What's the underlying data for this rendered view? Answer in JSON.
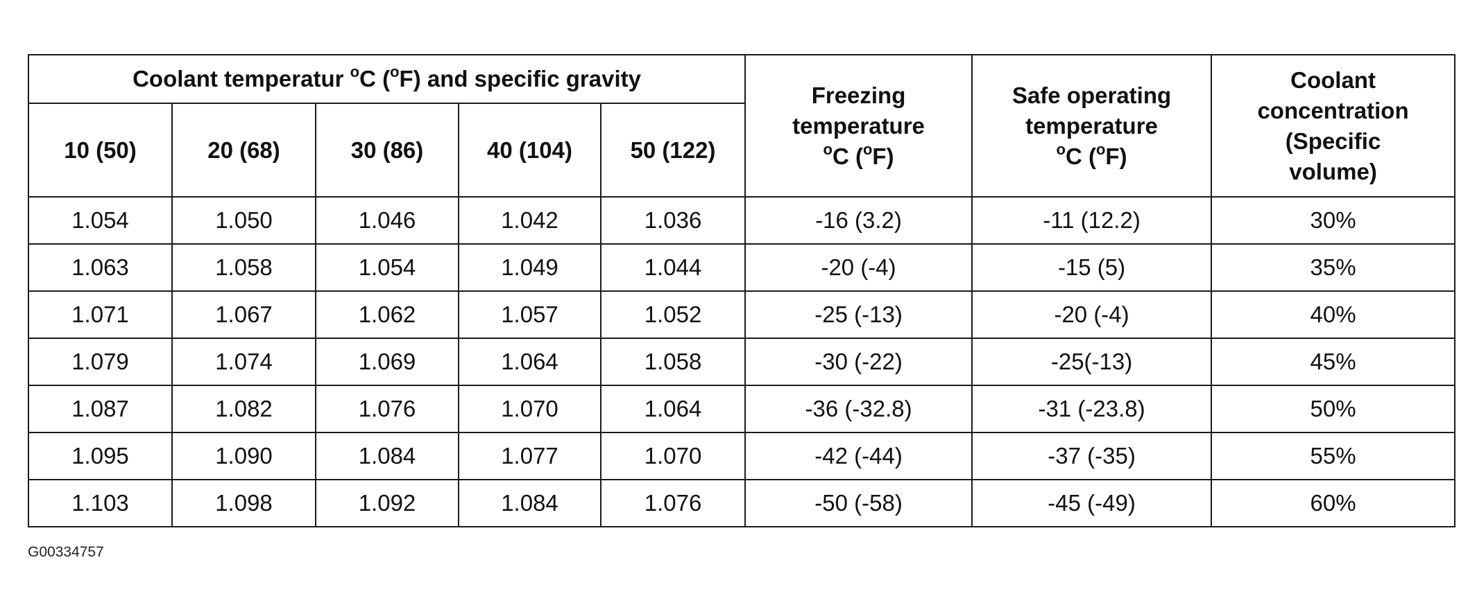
{
  "table": {
    "group_header": {
      "prefix": "Coolant temperatur ",
      "deg1": "o",
      "mid1": "C (",
      "deg2": "o",
      "suffix": "F) and specific gravity"
    },
    "temp_columns": [
      "10 (50)",
      "20 (68)",
      "30 (86)",
      "40 (104)",
      "50 (122)"
    ],
    "freezing_header": {
      "line1": "Freezing",
      "line2": "temperature",
      "deg1": "o",
      "mid": "C (",
      "deg2": "o",
      "end": "F)"
    },
    "safe_header": {
      "line1": "Safe operating",
      "line2": "temperature",
      "deg1": "o",
      "mid": "C (",
      "deg2": "o",
      "end": "F)"
    },
    "concentration_header": {
      "line1": "Coolant",
      "line2": "concentration",
      "line3": "(Specific",
      "line4": "volume)"
    },
    "rows": [
      {
        "sg": [
          "1.054",
          "1.050",
          "1.046",
          "1.042",
          "1.036"
        ],
        "freezing": "-16 (3.2)",
        "safe": "-11 (12.2)",
        "concentration": "30%"
      },
      {
        "sg": [
          "1.063",
          "1.058",
          "1.054",
          "1.049",
          "1.044"
        ],
        "freezing": "-20 (-4)",
        "safe": "-15 (5)",
        "concentration": "35%"
      },
      {
        "sg": [
          "1.071",
          "1.067",
          "1.062",
          "1.057",
          "1.052"
        ],
        "freezing": "-25 (-13)",
        "safe": "-20 (-4)",
        "concentration": "40%"
      },
      {
        "sg": [
          "1.079",
          "1.074",
          "1.069",
          "1.064",
          "1.058"
        ],
        "freezing": "-30 (-22)",
        "safe": "-25(-13)",
        "concentration": "45%"
      },
      {
        "sg": [
          "1.087",
          "1.082",
          "1.076",
          "1.070",
          "1.064"
        ],
        "freezing": "-36 (-32.8)",
        "safe": "-31 (-23.8)",
        "concentration": "50%"
      },
      {
        "sg": [
          "1.095",
          "1.090",
          "1.084",
          "1.077",
          "1.070"
        ],
        "freezing": "-42 (-44)",
        "safe": "-37 (-35)",
        "concentration": "55%"
      },
      {
        "sg": [
          "1.103",
          "1.098",
          "1.092",
          "1.084",
          "1.076"
        ],
        "freezing": "-50 (-58)",
        "safe": "-45 (-49)",
        "concentration": "60%"
      }
    ]
  },
  "figure_id": "G00334757"
}
